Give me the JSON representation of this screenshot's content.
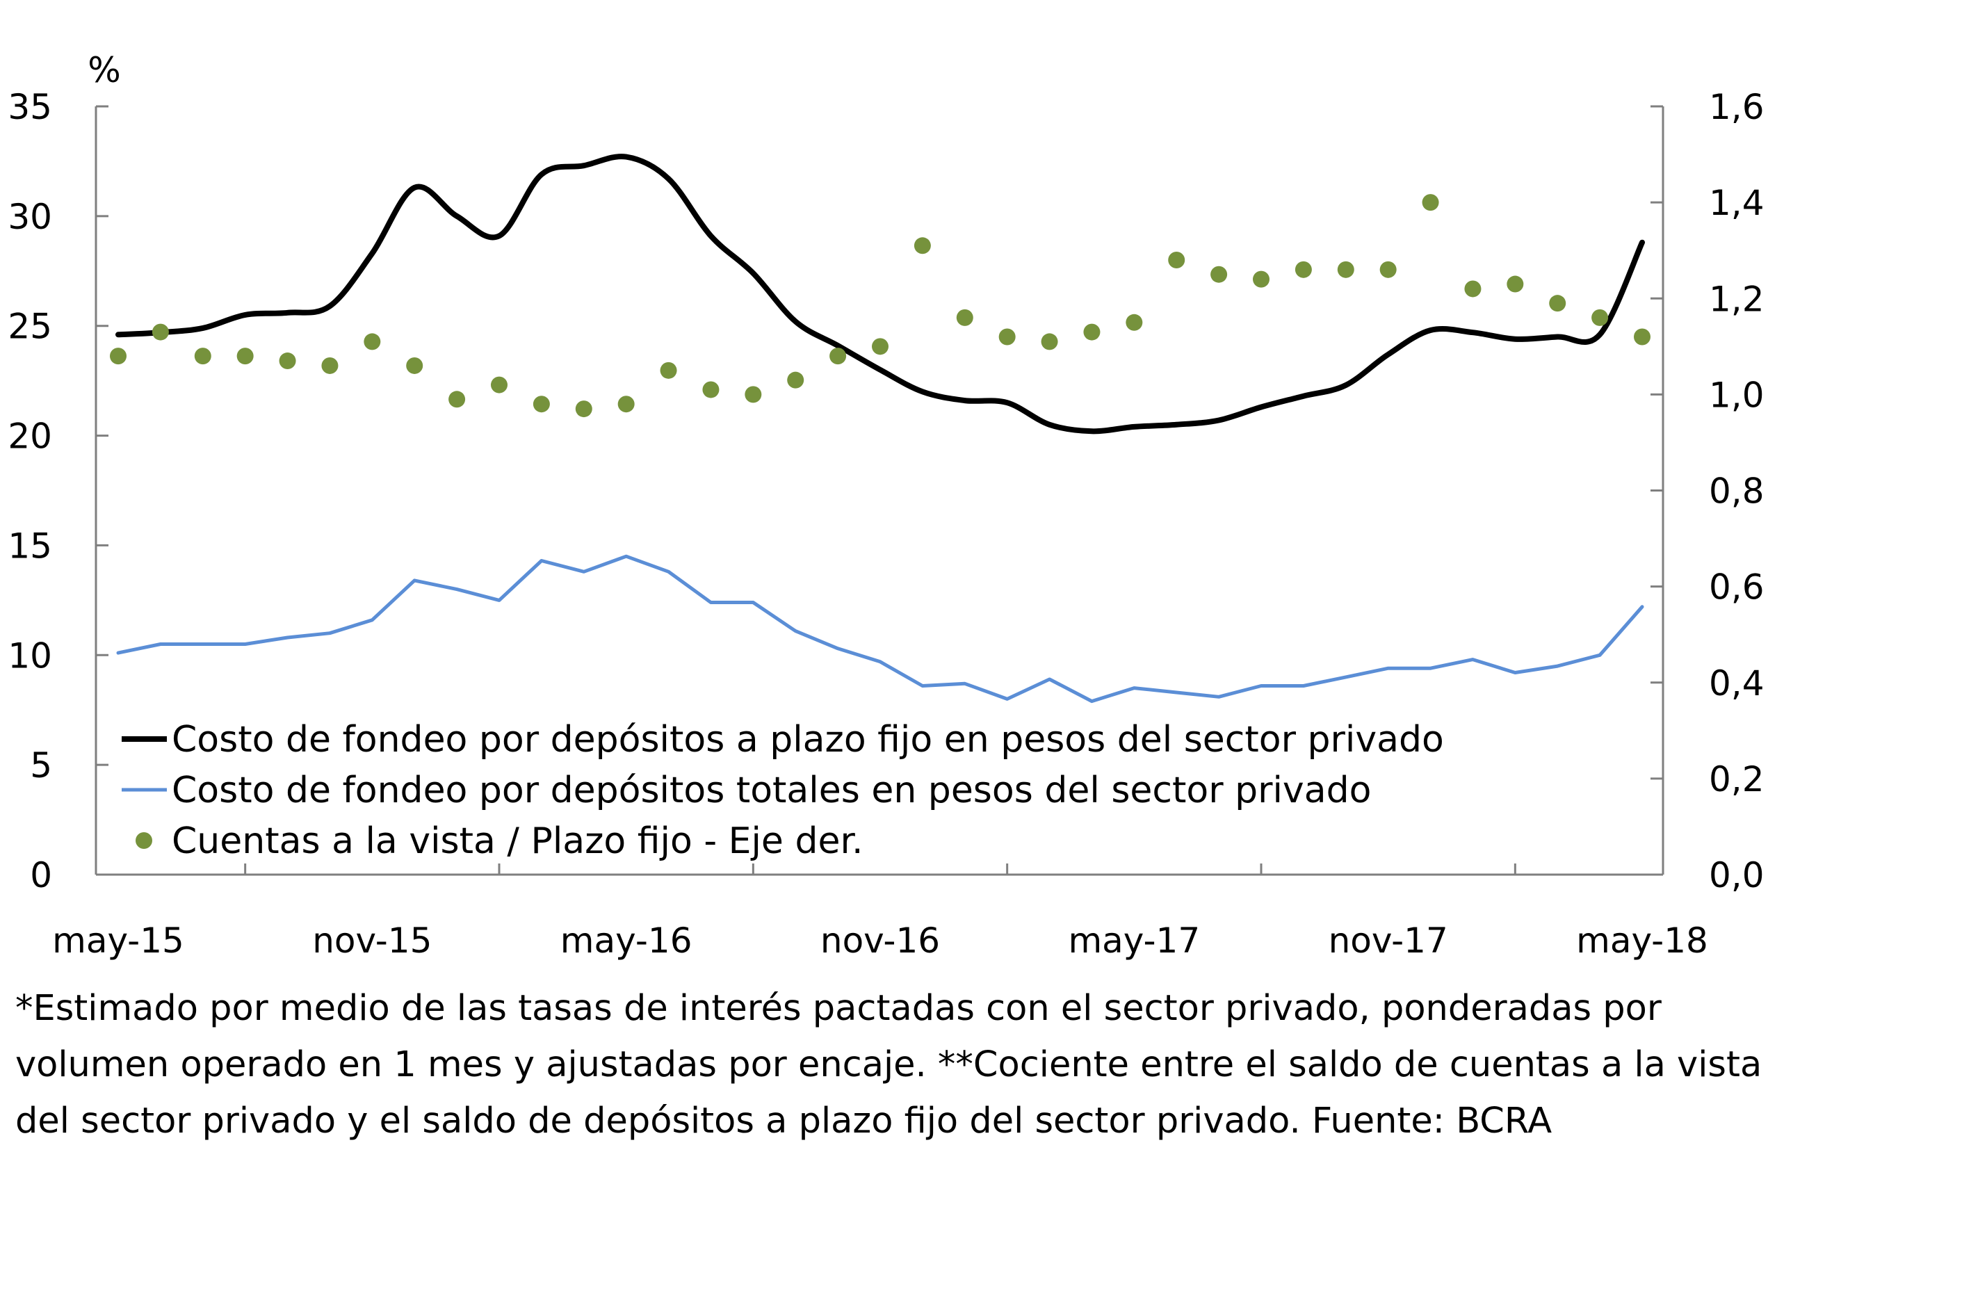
{
  "chart_data": {
    "type": "line",
    "y_unit": "%",
    "x_tick_labels": [
      "may-15",
      "nov-15",
      "may-16",
      "nov-16",
      "may-17",
      "nov-17",
      "may-18"
    ],
    "x": [
      "may-15",
      "jun-15",
      "jul-15",
      "ago-15",
      "sep-15",
      "oct-15",
      "nov-15",
      "dic-15",
      "ene-16",
      "feb-16",
      "mar-16",
      "abr-16",
      "may-16",
      "jun-16",
      "jul-16",
      "ago-16",
      "sep-16",
      "oct-16",
      "nov-16",
      "dic-16",
      "ene-17",
      "feb-17",
      "mar-17",
      "abr-17",
      "may-17",
      "jun-17",
      "jul-17",
      "ago-17",
      "sep-17",
      "oct-17",
      "nov-17",
      "dic-17",
      "ene-18",
      "feb-18",
      "mar-18",
      "abr-18",
      "may-18"
    ],
    "ylim_left": [
      0,
      35
    ],
    "yticks_left": [
      "0",
      "5",
      "10",
      "15",
      "20",
      "25",
      "30",
      "35"
    ],
    "ylim_right": [
      0,
      1.6
    ],
    "yticks_right": [
      "0,0",
      "0,2",
      "0,4",
      "0,6",
      "0,8",
      "1,0",
      "1,2",
      "1,4",
      "1,6"
    ],
    "series": [
      {
        "name": "Costo de fondeo por depósitos a plazo fijo en pesos del sector privado",
        "axis": "left",
        "style": "line",
        "color": "#000000",
        "values": [
          24.6,
          24.7,
          24.9,
          25.5,
          25.6,
          25.9,
          28.3,
          31.3,
          30.0,
          29.1,
          31.9,
          32.3,
          32.7,
          31.7,
          29.1,
          27.4,
          25.2,
          24.1,
          23.0,
          22.0,
          21.6,
          21.5,
          20.5,
          20.2,
          20.4,
          20.5,
          20.7,
          21.3,
          21.8,
          22.3,
          23.7,
          24.8,
          24.7,
          24.4,
          24.5,
          24.6,
          28.8
        ]
      },
      {
        "name": "Costo de fondeo por depósitos totales en pesos del sector privado",
        "axis": "left",
        "style": "line",
        "color": "#5B8ED6",
        "values": [
          10.1,
          10.5,
          10.5,
          10.5,
          10.8,
          11.0,
          11.6,
          13.4,
          13.0,
          12.5,
          14.3,
          13.8,
          14.5,
          13.8,
          12.4,
          12.4,
          11.1,
          10.3,
          9.7,
          8.6,
          8.7,
          8.0,
          8.9,
          7.9,
          8.5,
          8.3,
          8.1,
          8.6,
          8.6,
          9.0,
          9.4,
          9.4,
          9.8,
          9.2,
          9.5,
          10.0,
          12.2
        ]
      },
      {
        "name": "Cuentas a la vista / Plazo fijo - Eje der.",
        "axis": "right",
        "style": "dots",
        "color": "#76923C",
        "values": [
          1.08,
          1.13,
          1.08,
          1.08,
          1.07,
          1.06,
          1.11,
          1.06,
          0.99,
          1.02,
          0.98,
          0.97,
          0.98,
          1.05,
          1.01,
          1.0,
          1.03,
          1.08,
          1.1,
          1.31,
          1.16,
          1.12,
          1.11,
          1.13,
          1.15,
          1.28,
          1.25,
          1.24,
          1.26,
          1.26,
          1.26,
          1.4,
          1.22,
          1.23,
          1.19,
          1.16,
          1.12
        ]
      }
    ],
    "grid": false,
    "legend_placement": "bottom-left"
  },
  "footnote": "*Estimado por medio de las tasas de interés pactadas con el sector privado, ponderadas por volumen operado en 1 mes y ajustadas por encaje. **Cociente entre el saldo de cuentas a la vista del sector privado y el saldo de depósitos a plazo fijo del sector privado. Fuente: BCRA"
}
